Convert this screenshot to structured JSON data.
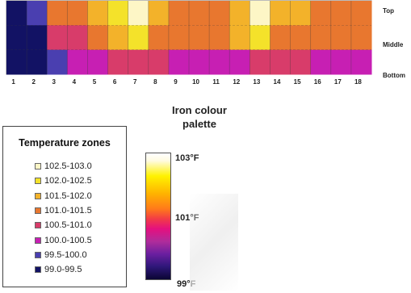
{
  "chart_data": {
    "type": "heatmap",
    "columns": [
      "1",
      "2",
      "3",
      "4",
      "5",
      "6",
      "7",
      "8",
      "9",
      "10",
      "11",
      "12",
      "13",
      "14",
      "15",
      "16",
      "17",
      "18"
    ],
    "row_labels": [
      "Top",
      "Middle",
      "Bottom"
    ],
    "temperature_unit": "°F",
    "zones": [
      {
        "range": "99.0-99.5",
        "color": "#121264"
      },
      {
        "range": "99.5-100.0",
        "color": "#4a3fb0"
      },
      {
        "range": "100.0-100.5",
        "color": "#c71fb3"
      },
      {
        "range": "100.5-101.0",
        "color": "#d83c6a"
      },
      {
        "range": "101.0-101.5",
        "color": "#e8772f"
      },
      {
        "range": "101.5-102.0",
        "color": "#f3b22a"
      },
      {
        "range": "102.0-102.5",
        "color": "#f4e22a"
      },
      {
        "range": "102.5-103.0",
        "color": "#fdf6c6"
      }
    ],
    "zone_index_by_row": {
      "Top": [
        0,
        1,
        4,
        4,
        5,
        6,
        7,
        5,
        4,
        4,
        4,
        5,
        7,
        5,
        5,
        4,
        4,
        4
      ],
      "Middle": [
        0,
        0,
        3,
        3,
        4,
        5,
        6,
        4,
        4,
        4,
        4,
        5,
        6,
        4,
        4,
        4,
        4,
        4
      ],
      "Bottom": [
        0,
        0,
        1,
        2,
        2,
        3,
        3,
        3,
        2,
        2,
        2,
        2,
        3,
        3,
        3,
        2,
        2,
        2
      ]
    }
  },
  "legend": {
    "title": "Temperature zones",
    "items": [
      {
        "label": "102.5-103.0",
        "color": "#fdf6c6"
      },
      {
        "label": "102.0-102.5",
        "color": "#f4e22a"
      },
      {
        "label": "101.5-102.0",
        "color": "#f3b22a"
      },
      {
        "label": "101.0-101.5",
        "color": "#e8772f"
      },
      {
        "label": "100.5-101.0",
        "color": "#d83c6a"
      },
      {
        "label": "100.0-100.5",
        "color": "#c71fb3"
      },
      {
        "label": "99.5-100.0",
        "color": "#4a3fb0"
      },
      {
        "label": "99.0-99.5",
        "color": "#121264"
      }
    ]
  },
  "palette": {
    "title_line1": "Iron colour",
    "title_line2": "palette",
    "max_label": "103°F",
    "mid_label": "101°F",
    "min_label": "99°F"
  }
}
